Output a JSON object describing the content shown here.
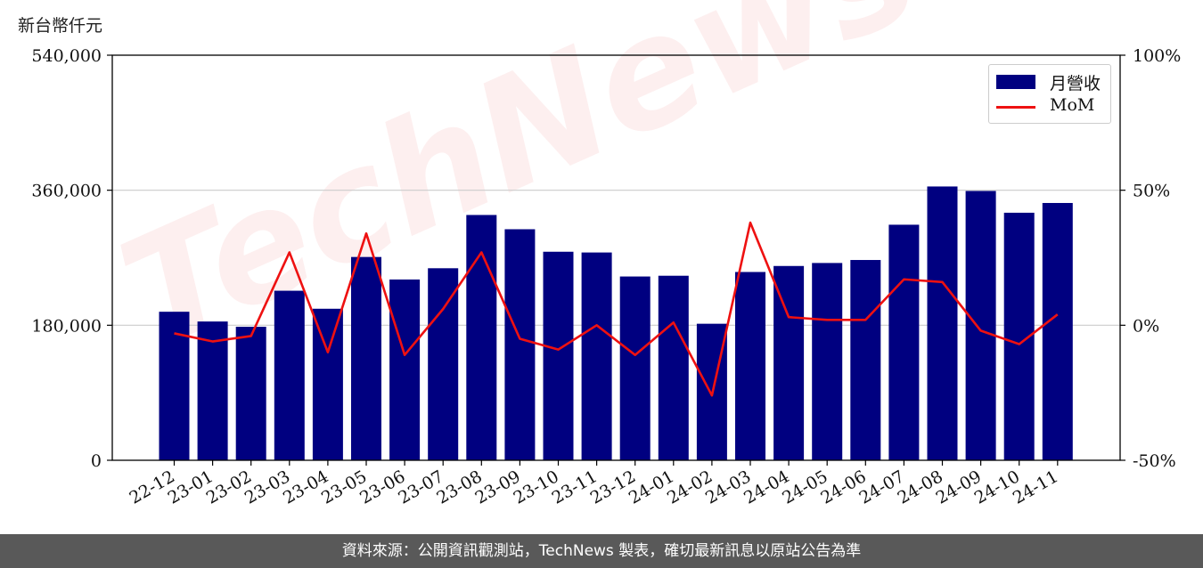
{
  "unit_label": "新台幣仟元",
  "watermark": "TechNews",
  "footer": "資料來源：公開資訊觀測站，TechNews 製表，確切最新訊息以原站公告為準",
  "legend": {
    "bar_label": "月營收",
    "line_label": "MoM"
  },
  "colors": {
    "bar": "#000080",
    "line": "#ee1111",
    "footer_bg": "#595959",
    "grid": "#cccccc"
  },
  "chart_data": {
    "type": "bar",
    "categories": [
      "22-12",
      "23-01",
      "23-02",
      "23-03",
      "23-04",
      "23-05",
      "23-06",
      "23-07",
      "23-08",
      "23-09",
      "23-10",
      "23-11",
      "23-12",
      "24-01",
      "24-02",
      "24-03",
      "24-04",
      "24-05",
      "24-06",
      "24-07",
      "24-08",
      "24-09",
      "24-10",
      "24-11"
    ],
    "series": [
      {
        "name": "月營收",
        "type": "bar",
        "axis": "left",
        "values": [
          198000,
          185000,
          178000,
          226000,
          202000,
          271000,
          241000,
          256000,
          327000,
          308000,
          278000,
          277000,
          245000,
          246000,
          182000,
          251000,
          259000,
          263000,
          267000,
          314000,
          365000,
          359000,
          330000,
          343000
        ]
      },
      {
        "name": "MoM",
        "type": "line",
        "axis": "right",
        "values": [
          -3,
          -6,
          -4,
          27,
          -10,
          34,
          -11,
          6,
          27,
          -5,
          -9,
          0,
          -11,
          1,
          -26,
          38,
          3,
          2,
          2,
          17,
          16,
          -2,
          -7,
          4
        ]
      }
    ],
    "left_axis": {
      "ylim": [
        0,
        540000
      ],
      "ticks": [
        "0",
        "180,000",
        "360,000",
        "540,000"
      ],
      "tick_values": [
        0,
        180000,
        360000,
        540000
      ]
    },
    "right_axis": {
      "ylim": [
        -50,
        100
      ],
      "ticks": [
        "-50%",
        "0%",
        "50%",
        "100%"
      ],
      "tick_values": [
        -50,
        0,
        50,
        100
      ]
    },
    "grid": "horizontal",
    "legend_position": "top-right"
  }
}
